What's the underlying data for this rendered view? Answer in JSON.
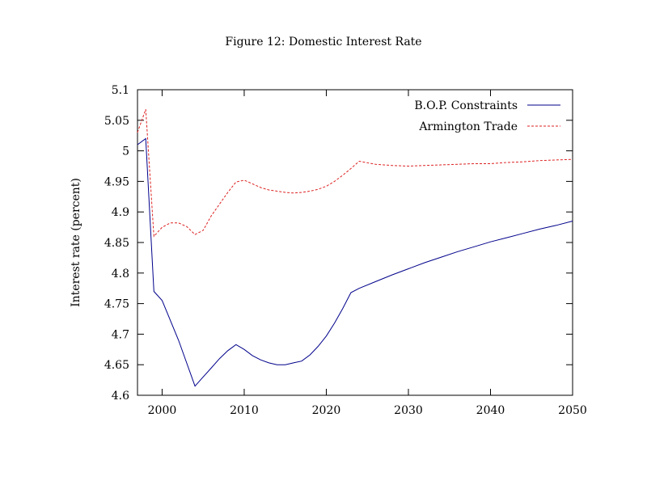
{
  "chart_data": {
    "type": "line",
    "title": "Figure 12: Domestic Interest Rate",
    "xlabel": "",
    "ylabel": "Interest rate (percent)",
    "xlim": [
      1997,
      2050
    ],
    "ylim": [
      4.6,
      5.1
    ],
    "xticks": [
      2000,
      2010,
      2020,
      2030,
      2040,
      2050
    ],
    "yticks": [
      4.6,
      4.65,
      4.7,
      4.75,
      4.8,
      4.85,
      4.9,
      4.95,
      5,
      5.05,
      5.1
    ],
    "ytick_labels": [
      "4.6",
      "4.65",
      "4.7",
      "4.75",
      "4.8",
      "4.85",
      "4.9",
      "4.95",
      "5",
      "5.05",
      "5.1"
    ],
    "legend_position": "top-right",
    "series": [
      {
        "name": "B.O.P. Constraints",
        "color": "#00008b",
        "dash": "solid",
        "x": [
          1997,
          1998,
          1999,
          2000,
          2002,
          2004,
          2005,
          2006,
          2007,
          2008,
          2009,
          2010,
          2011,
          2012,
          2013,
          2014,
          2015,
          2016,
          2017,
          2018,
          2019,
          2020,
          2021,
          2022,
          2023,
          2024,
          2026,
          2028,
          2030,
          2032,
          2034,
          2036,
          2038,
          2040,
          2042,
          2044,
          2046,
          2048,
          2050
        ],
        "values": [
          5.01,
          5.02,
          4.77,
          4.755,
          4.69,
          4.615,
          4.63,
          4.645,
          4.66,
          4.673,
          4.683,
          4.675,
          4.665,
          4.658,
          4.653,
          4.65,
          4.65,
          4.653,
          4.656,
          4.666,
          4.68,
          4.697,
          4.718,
          4.742,
          4.768,
          4.775,
          4.786,
          4.797,
          4.807,
          4.817,
          4.826,
          4.835,
          4.843,
          4.851,
          4.858,
          4.865,
          4.872,
          4.878,
          4.885
        ]
      },
      {
        "name": "Armington Trade",
        "color": "#dd2222",
        "dash": "dashed",
        "x": [
          1997,
          1998,
          1999,
          2000,
          2001,
          2002,
          2003,
          2004,
          2005,
          2006,
          2007,
          2008,
          2009,
          2010,
          2011,
          2012,
          2013,
          2014,
          2015,
          2016,
          2017,
          2018,
          2019,
          2020,
          2021,
          2022,
          2023,
          2024,
          2026,
          2028,
          2030,
          2032,
          2034,
          2036,
          2038,
          2040,
          2042,
          2044,
          2046,
          2048,
          2050
        ],
        "values": [
          5.03,
          5.068,
          4.86,
          4.875,
          4.882,
          4.882,
          4.876,
          4.863,
          4.87,
          4.894,
          4.913,
          4.932,
          4.949,
          4.952,
          4.946,
          4.94,
          4.936,
          4.934,
          4.932,
          4.931,
          4.932,
          4.934,
          4.937,
          4.942,
          4.95,
          4.96,
          4.971,
          4.983,
          4.978,
          4.976,
          4.975,
          4.976,
          4.977,
          4.978,
          4.979,
          4.979,
          4.981,
          4.982,
          4.984,
          4.985,
          4.986
        ]
      }
    ]
  }
}
